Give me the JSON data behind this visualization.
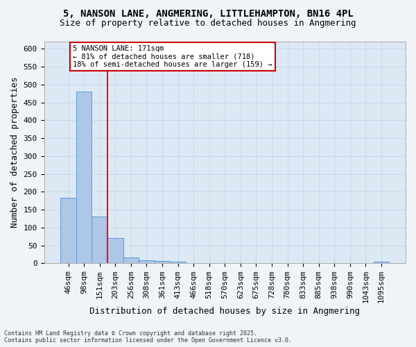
{
  "title_line1": "5, NANSON LANE, ANGMERING, LITTLEHAMPTON, BN16 4PL",
  "title_line2": "Size of property relative to detached houses in Angmering",
  "xlabel": "Distribution of detached houses by size in Angmering",
  "ylabel": "Number of detached properties",
  "bar_labels": [
    "46sqm",
    "98sqm",
    "151sqm",
    "203sqm",
    "256sqm",
    "308sqm",
    "361sqm",
    "413sqm",
    "466sqm",
    "518sqm",
    "570sqm",
    "623sqm",
    "675sqm",
    "728sqm",
    "780sqm",
    "833sqm",
    "885sqm",
    "938sqm",
    "990sqm",
    "1043sqm",
    "1095sqm"
  ],
  "bar_values": [
    183,
    480,
    130,
    70,
    16,
    9,
    6,
    5,
    0,
    0,
    0,
    0,
    0,
    0,
    0,
    0,
    0,
    0,
    0,
    0,
    5
  ],
  "bar_color": "#aec6e8",
  "bar_edgecolor": "#5b9bd5",
  "red_line_x": 2.5,
  "annotation_text": "5 NANSON LANE: 171sqm\n← 81% of detached houses are smaller (718)\n18% of semi-detached houses are larger (159) →",
  "annotation_box_color": "#ffffff",
  "annotation_border_color": "#cc0000",
  "ylim": [
    0,
    620
  ],
  "yticks": [
    0,
    50,
    100,
    150,
    200,
    250,
    300,
    350,
    400,
    450,
    500,
    550,
    600
  ],
  "grid_color": "#c8d8ea",
  "background_color": "#dce9f5",
  "fig_background_color": "#f0f4f8",
  "footer_text": "Contains HM Land Registry data © Crown copyright and database right 2025.\nContains public sector information licensed under the Open Government Licence v3.0.",
  "title_fontsize": 10,
  "axis_fontsize": 9,
  "tick_fontsize": 8
}
